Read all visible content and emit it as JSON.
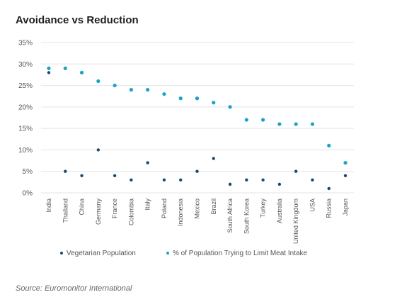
{
  "chart_data": {
    "type": "scatter",
    "title": "Avoidance vs Reduction",
    "categories": [
      "India",
      "Thailand",
      "China",
      "Germany",
      "France",
      "Colombia",
      "Italy",
      "Poland",
      "Indonesia",
      "Mexico",
      "Brazil",
      "South Africa",
      "South Korea",
      "Turkey",
      "Australia",
      "United Kingdom",
      "USA",
      "Russia",
      "Japan"
    ],
    "series": [
      {
        "name": "Vegetarian Population",
        "color": "#1d4a6b",
        "values": [
          28,
          5,
          4,
          10,
          4,
          3,
          7,
          3,
          3,
          5,
          8,
          2,
          3,
          3,
          2,
          5,
          3,
          1,
          4
        ]
      },
      {
        "name": "% of Population Trying to Limit Meat Intake",
        "color": "#1ba3c6",
        "values": [
          29,
          29,
          28,
          26,
          25,
          24,
          24,
          23,
          22,
          22,
          21,
          20,
          17,
          17,
          16,
          16,
          16,
          11,
          7
        ]
      }
    ],
    "ylim": [
      0,
      35
    ],
    "yticks": [
      "0%",
      "5%",
      "10%",
      "15%",
      "20%",
      "25%",
      "30%",
      "35%"
    ],
    "grid": true,
    "legend_position": "bottom"
  },
  "source": "Source: Euromonitor International"
}
